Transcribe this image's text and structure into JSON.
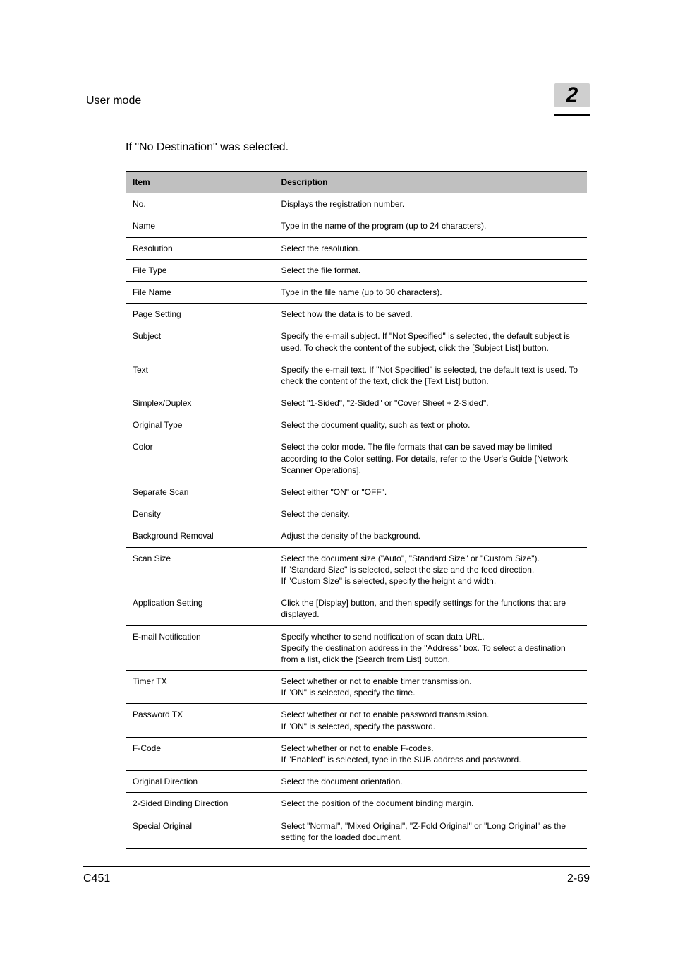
{
  "header": {
    "title": "User mode",
    "chapter": "2"
  },
  "lead": "If \"No Destination\" was selected.",
  "table": {
    "columns": [
      "Item",
      "Description"
    ],
    "rows": [
      {
        "item": "No.",
        "desc": "Displays the registration number."
      },
      {
        "item": "Name",
        "desc": "Type in the name of the program (up to 24 characters)."
      },
      {
        "item": "Resolution",
        "desc": "Select the resolution."
      },
      {
        "item": "File Type",
        "desc": "Select the file format."
      },
      {
        "item": "File Name",
        "desc": "Type in the file name (up to 30 characters)."
      },
      {
        "item": "Page Setting",
        "desc": "Select how the data is to be saved."
      },
      {
        "item": "Subject",
        "desc": "Specify the e-mail subject. If \"Not Specified\" is selected, the default subject is used. To check the content of the subject, click the [Subject List] button."
      },
      {
        "item": "Text",
        "desc": "Specify the e-mail text. If \"Not Specified\" is selected, the default text is used. To check the content of the text, click the [Text List] button."
      },
      {
        "item": "Simplex/Duplex",
        "desc": "Select \"1-Sided\", \"2-Sided\" or \"Cover Sheet + 2-Sided\"."
      },
      {
        "item": "Original Type",
        "desc": "Select the document quality, such as text or photo."
      },
      {
        "item": "Color",
        "desc": "Select the color mode. The file formats that can be saved may be limited according to the Color setting. For details, refer to the User's Guide [Network Scanner Operations]."
      },
      {
        "item": "Separate Scan",
        "desc": "Select either \"ON\" or \"OFF\"."
      },
      {
        "item": "Density",
        "desc": "Select the density."
      },
      {
        "item": "Background Removal",
        "desc": "Adjust the density of the background."
      },
      {
        "item": "Scan Size",
        "desc": "Select the document size (\"Auto\", \"Standard Size\" or \"Custom Size\").\nIf \"Standard Size\" is selected, select the size and the feed direction.\nIf \"Custom Size\" is selected, specify the height and width."
      },
      {
        "item": "Application Setting",
        "desc": "Click the [Display] button, and then specify settings for the functions that are displayed."
      },
      {
        "item": "E-mail Notification",
        "desc": "Specify whether to send notification of scan data URL.\nSpecify the destination address in the \"Address\" box. To select a destination from a list, click the [Search from List] button."
      },
      {
        "item": "Timer TX",
        "desc": "Select whether or not to enable timer transmission.\nIf \"ON\" is selected, specify the time."
      },
      {
        "item": "Password TX",
        "desc": "Select whether or not to enable password transmission.\nIf \"ON\" is selected, specify the password."
      },
      {
        "item": "F-Code",
        "desc": "Select whether or not to enable F-codes.\nIf \"Enabled\" is selected, type in the SUB address and password."
      },
      {
        "item": "Original Direction",
        "desc": "Select the document orientation."
      },
      {
        "item": "2-Sided Binding Direction",
        "desc": "Select the position of the document binding margin."
      },
      {
        "item": "Special Original",
        "desc": "Select \"Normal\", \"Mixed Original\", \"Z-Fold Original\" or \"Long Original\" as the setting for the loaded document."
      }
    ]
  },
  "footer": {
    "model": "C451",
    "page": "2-69"
  }
}
